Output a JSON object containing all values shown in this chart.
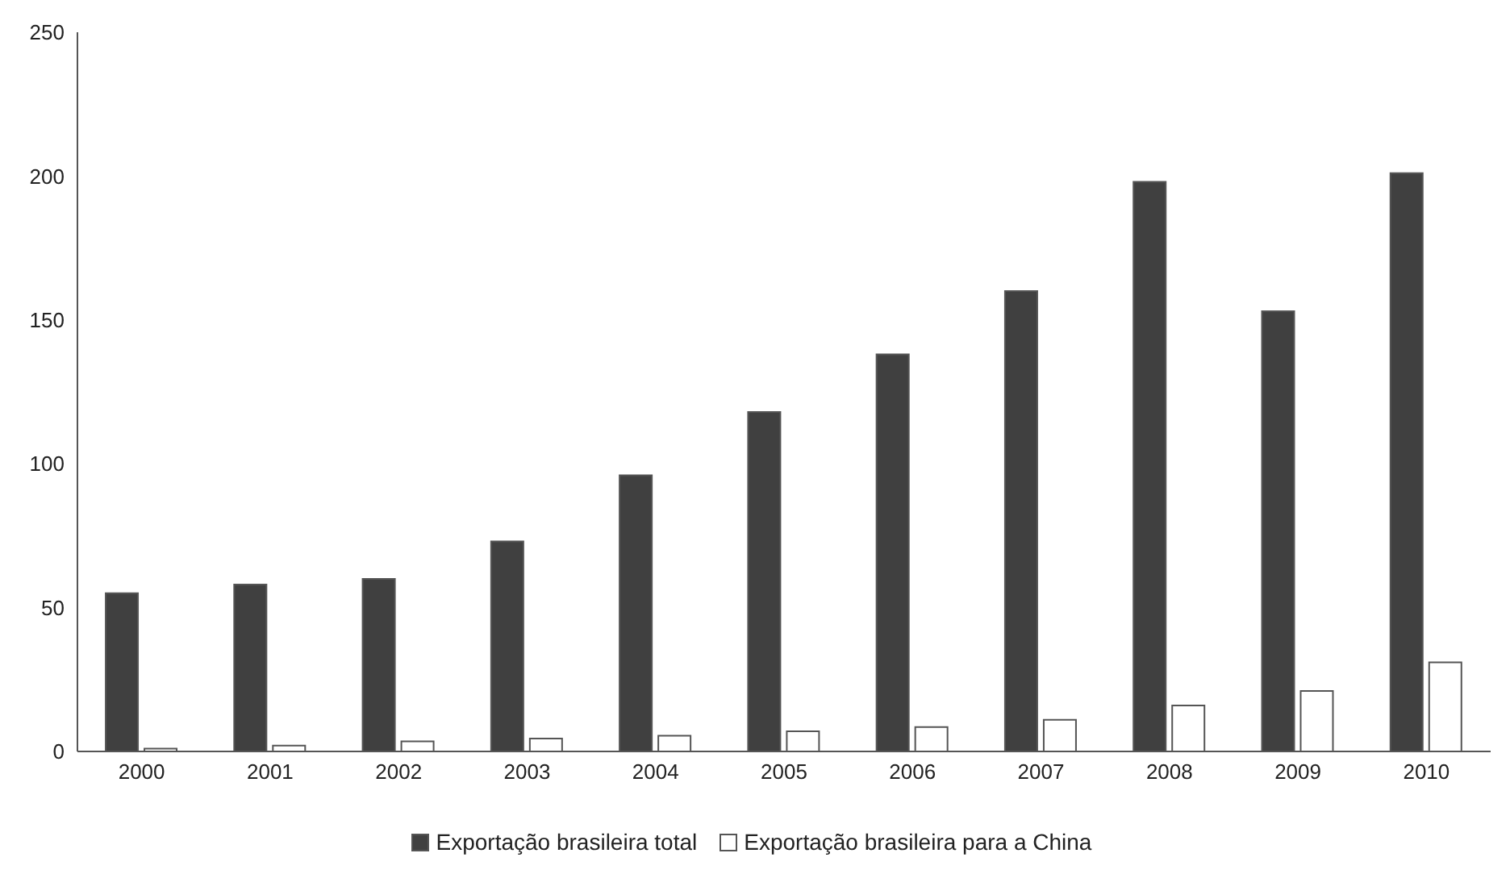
{
  "chart_data": {
    "type": "bar",
    "categories": [
      "2000",
      "2001",
      "2002",
      "2003",
      "2004",
      "2005",
      "2006",
      "2007",
      "2008",
      "2009",
      "2010"
    ],
    "series": [
      {
        "name": "Exportação brasileira total",
        "color": "#404040",
        "values": [
          55,
          58,
          60,
          73,
          96,
          118,
          138,
          160,
          198,
          153,
          201
        ]
      },
      {
        "name": "Exportação brasileira para a China",
        "color": "#ffffff",
        "values": [
          1,
          2,
          3.5,
          4.5,
          5.5,
          7,
          8.5,
          11,
          16,
          21,
          31
        ]
      }
    ],
    "ylim": [
      0,
      250
    ],
    "yticks": [
      0,
      50,
      100,
      150,
      200,
      250
    ],
    "grid": false,
    "legend": "bottom"
  }
}
